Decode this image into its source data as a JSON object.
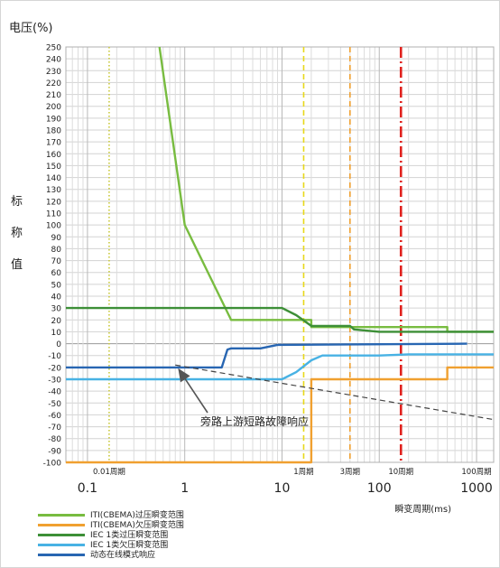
{
  "chart_data": {
    "type": "line",
    "title": "电压(%)",
    "ylabel_chars": [
      "标",
      "称",
      "值"
    ],
    "xlabel": "瞬变周期(ms)",
    "x_scale": "log",
    "xlim": [
      0.06,
      1500
    ],
    "ylim": [
      -100,
      250
    ],
    "y_ticks": [
      250,
      240,
      230,
      220,
      210,
      200,
      190,
      180,
      170,
      160,
      150,
      140,
      130,
      120,
      110,
      100,
      90,
      80,
      70,
      60,
      50,
      40,
      30,
      20,
      10,
      0,
      -10,
      -20,
      -30,
      -40,
      -50,
      -60,
      -70,
      -80,
      -90,
      -100
    ],
    "x_major_ticks": [
      {
        "value": 0.1,
        "label": "0.1"
      },
      {
        "value": 1,
        "label": "1"
      },
      {
        "value": 10,
        "label": "10"
      },
      {
        "value": 100,
        "label": "100"
      },
      {
        "value": 1000,
        "label": "1000"
      }
    ],
    "cycle_markers": [
      {
        "value": 0.167,
        "label": "0.01周期",
        "color": "#c9c93a",
        "style": "dotted"
      },
      {
        "value": 16.7,
        "label": "1周期",
        "color": "#e8d81a",
        "style": "dashed"
      },
      {
        "value": 50,
        "label": "3周期",
        "color": "#f0a030",
        "style": "dashed"
      },
      {
        "value": 167,
        "label": "10周期",
        "color": "#e0201c",
        "style": "dashdot"
      },
      {
        "value": 1000,
        "label": "100周期",
        "color": null,
        "style": "none"
      }
    ],
    "series": [
      {
        "name": "ITI(CBEMA)过压瞬变范围",
        "color": "#78bc40",
        "points": [
          [
            0.55,
            250
          ],
          [
            1.0,
            100
          ],
          [
            3.0,
            20
          ],
          [
            20,
            20
          ],
          [
            20,
            14
          ],
          [
            500,
            14
          ],
          [
            500,
            10
          ],
          [
            1500,
            10
          ]
        ]
      },
      {
        "name": "ITI(CBEMA)欠压瞬变范围",
        "color": "#f0a030",
        "points": [
          [
            0.06,
            -100
          ],
          [
            20,
            -100
          ],
          [
            20,
            -30
          ],
          [
            500,
            -30
          ],
          [
            500,
            -20
          ],
          [
            1500,
            -20
          ]
        ]
      },
      {
        "name": "IEC 1类过压瞬变范围",
        "color": "#3d8f37",
        "points": [
          [
            0.06,
            30
          ],
          [
            10,
            30
          ],
          [
            14,
            24
          ],
          [
            20,
            15
          ],
          [
            50,
            15
          ],
          [
            55,
            12
          ],
          [
            100,
            10
          ],
          [
            1500,
            10
          ]
        ]
      },
      {
        "name": "IEC 1类欠压瞬变范围",
        "color": "#48b2e4",
        "points": [
          [
            0.06,
            -30
          ],
          [
            10,
            -30
          ],
          [
            14,
            -24
          ],
          [
            20,
            -14
          ],
          [
            26,
            -10
          ],
          [
            100,
            -10
          ],
          [
            200,
            -9
          ],
          [
            1500,
            -9
          ]
        ]
      },
      {
        "name": "动态在线模式响应",
        "color": "#2866b2",
        "points": [
          [
            0.06,
            -20
          ],
          [
            2.4,
            -20
          ],
          [
            2.75,
            -5
          ],
          [
            3.0,
            -4
          ],
          [
            6,
            -4
          ],
          [
            9,
            -1
          ],
          [
            800,
            0
          ]
        ]
      }
    ],
    "annotations": [
      {
        "text": "旁路上游短路故障响应",
        "arrow_to": [
          0.8,
          -18
        ]
      }
    ],
    "grid": true
  }
}
